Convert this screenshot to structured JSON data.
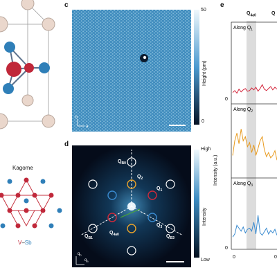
{
  "panels": {
    "c": "c",
    "d": "d",
    "e": "e"
  },
  "kagome": {
    "title": "Kagome",
    "legend_v": "V",
    "legend_dash": "–",
    "legend_sb": "Sb"
  },
  "colors": {
    "v_atom": "#c0283a",
    "sb_atom": "#2f7fb8",
    "cs_atom": "#ead7cc",
    "lattice_line": "#c53340",
    "line1": "#d4253b",
    "line2": "#e89a1e",
    "line3": "#3a8bd0",
    "highlight_band": "#dcdcdc"
  },
  "c_map": {
    "colorbar_max": "50",
    "colorbar_min": "0",
    "colorbar_label": "Height (pm)",
    "axis_b": "b",
    "axis_a": "a"
  },
  "d_map": {
    "colorbar_max": "High",
    "colorbar_min": "Low",
    "colorbar_label": "Intensity",
    "labels": {
      "QBragg0": "Q",
      "QBragg0_sub": "B0",
      "Q2": "Q",
      "Q2_sub": "2",
      "Q1": "Q",
      "Q1_sub": "1",
      "Q3": "Q",
      "Q3_sub": "3",
      "QB1": "Q",
      "QB1_sub": "B1",
      "QB3": "Q",
      "QB3_sub": "B3",
      "Q4a0": "Q",
      "Q4a0_sub": "4a0",
      "Qb": "q",
      "Qb_sub": "b",
      "Qa": "q",
      "Qa_sub": "a"
    }
  },
  "e_panel": {
    "top_label": "Q",
    "top_label_sub": "4a0",
    "top_right": "Q",
    "ylabel": "Intensity (a.u.)",
    "sub": [
      {
        "label": "Along Q",
        "sub": "1",
        "zero": "0"
      },
      {
        "label": "Along Q",
        "sub": "2",
        "zero": ""
      },
      {
        "label": "Along Q",
        "sub": "3",
        "zero": "0"
      }
    ],
    "x_tick": "0",
    "x_tick_right": "0"
  },
  "chart_data": {
    "type": "line",
    "series": [
      {
        "values": [
          0.12,
          0.15,
          0.11,
          0.17,
          0.13,
          0.16,
          0.18,
          0.14,
          0.15,
          0.19,
          0.16,
          0.2,
          0.14,
          0.18,
          0.24,
          0.17,
          0.15,
          0.18,
          0.21,
          0.16,
          0.2,
          0.17
        ]
      },
      {
        "values": [
          0.3,
          0.55,
          0.68,
          0.5,
          0.75,
          0.55,
          0.62,
          0.45,
          0.52,
          0.35,
          0.48,
          0.3,
          0.42,
          0.55,
          0.62,
          0.4,
          0.28,
          0.35,
          0.26,
          0.3,
          0.38,
          0.22
        ]
      },
      {
        "values": [
          0.15,
          0.2,
          0.35,
          0.3,
          0.25,
          0.32,
          0.22,
          0.28,
          0.3,
          0.25,
          0.4,
          0.2,
          0.52,
          0.22,
          0.18,
          0.24,
          0.3,
          0.2,
          0.26,
          0.22,
          0.28,
          0.18
        ]
      }
    ]
  }
}
